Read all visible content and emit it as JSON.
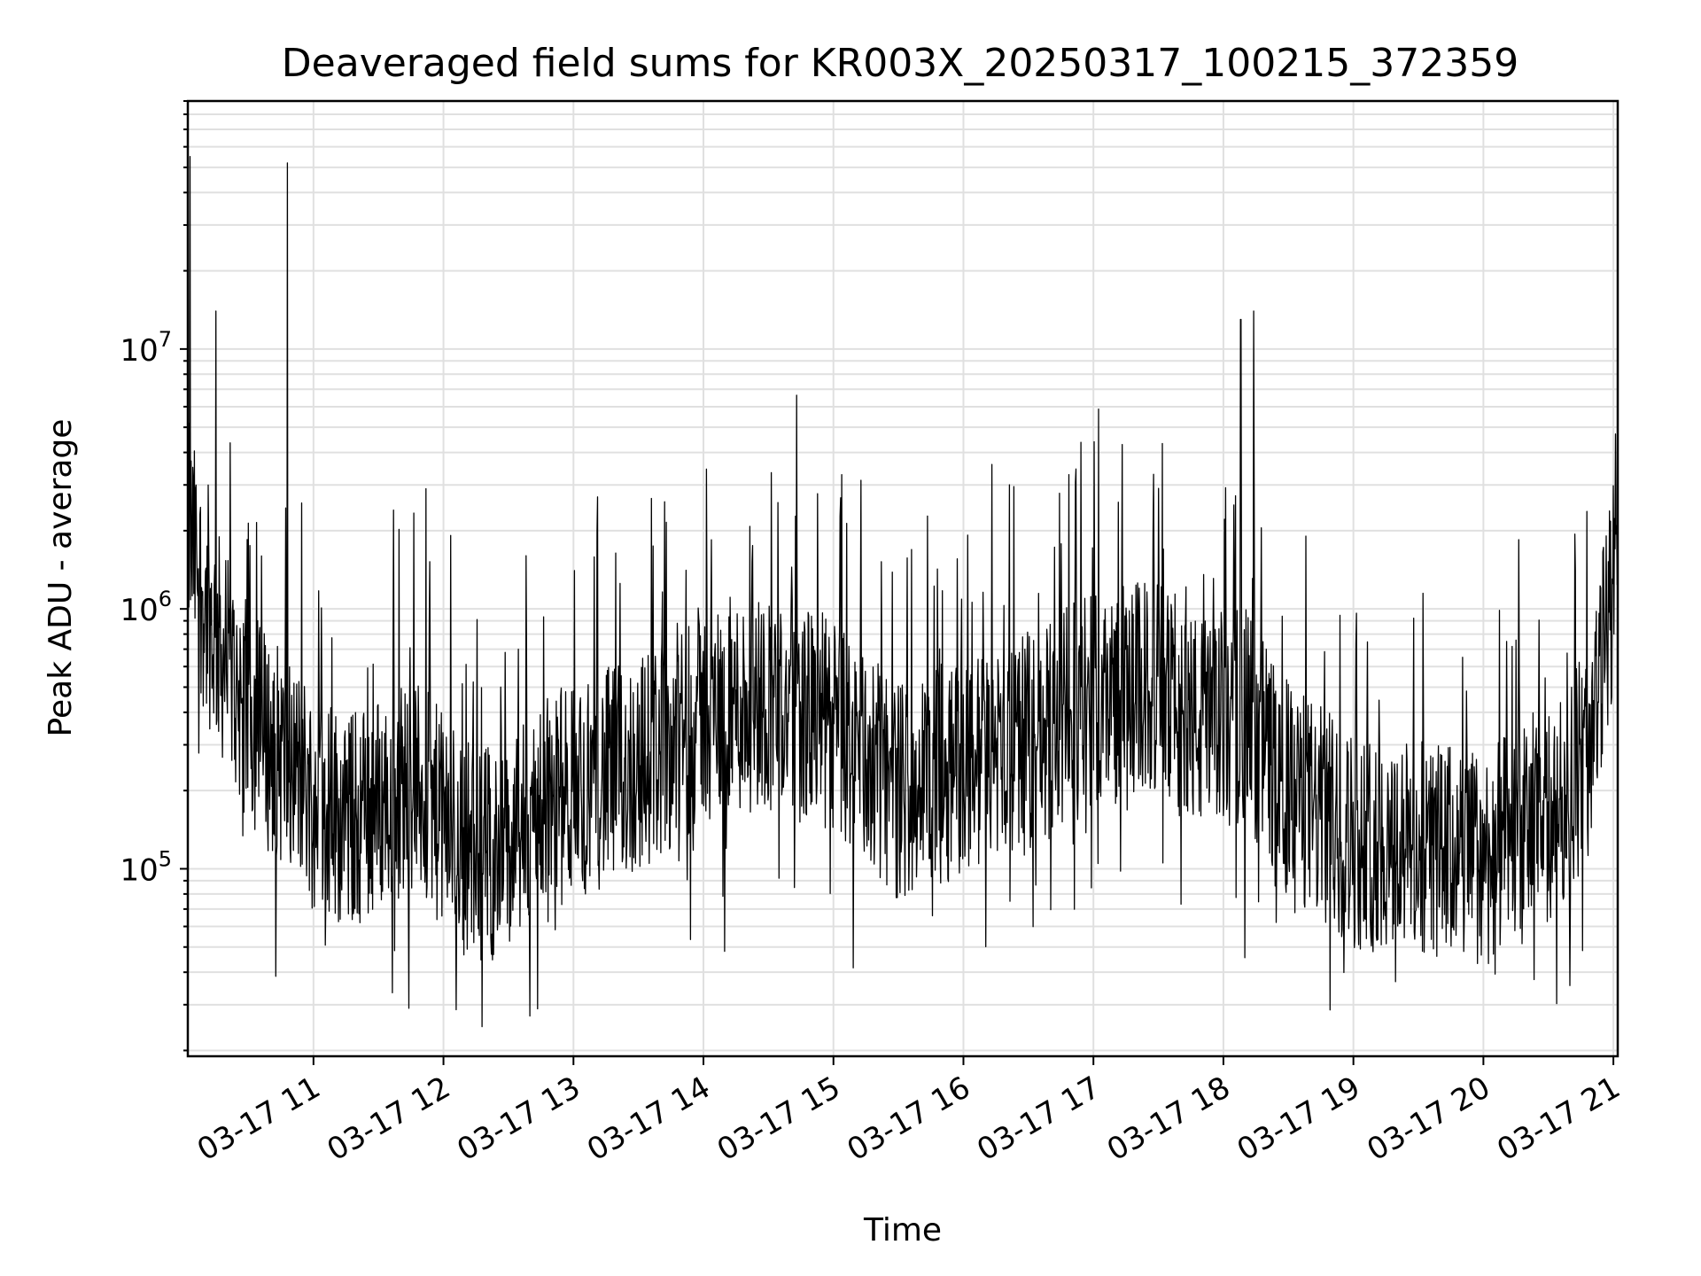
{
  "chart_data": {
    "type": "line",
    "title": "Deaveraged field sums for KR003X_20250317_100215_372359",
    "xlabel": "Time",
    "ylabel": "Peak ADU - average",
    "yscale": "log",
    "xlim": [
      "2025-03-17T10:02",
      "2025-03-17T21:02"
    ],
    "ylim": [
      19000,
      90000000
    ],
    "grid": true,
    "line_color": "#000000",
    "x_ticks": [
      "03-17 11",
      "03-17 12",
      "03-17 13",
      "03-17 14",
      "03-17 15",
      "03-17 16",
      "03-17 17",
      "03-17 18",
      "03-17 19",
      "03-17 20",
      "03-17 21"
    ],
    "y_ticks": [
      {
        "base": "10",
        "exp": "5",
        "value": 100000
      },
      {
        "base": "10",
        "exp": "6",
        "value": 1000000
      },
      {
        "base": "10",
        "exp": "7",
        "value": 10000000
      }
    ],
    "series": [
      {
        "x": [
          "2025-03-17T10:02",
          "2025-03-17T10:06",
          "2025-03-17T10:10",
          "2025-03-17T10:15",
          "2025-03-17T10:20",
          "2025-03-17T10:30",
          "2025-03-17T10:40",
          "2025-03-17T10:50",
          "2025-03-17T11:00",
          "2025-03-17T11:15",
          "2025-03-17T11:30",
          "2025-03-17T11:45",
          "2025-03-17T12:00",
          "2025-03-17T12:15",
          "2025-03-17T12:30",
          "2025-03-17T12:45",
          "2025-03-17T13:00",
          "2025-03-17T13:30",
          "2025-03-17T14:00",
          "2025-03-17T14:30",
          "2025-03-17T15:00",
          "2025-03-17T15:30",
          "2025-03-17T16:00",
          "2025-03-17T16:30",
          "2025-03-17T17:00",
          "2025-03-17T17:30",
          "2025-03-17T17:50",
          "2025-03-17T18:10",
          "2025-03-17T18:30",
          "2025-03-17T19:00",
          "2025-03-17T19:30",
          "2025-03-17T20:00",
          "2025-03-17T20:30",
          "2025-03-17T20:50",
          "2025-03-17T21:02"
        ],
        "y": [
          2000000,
          1500000,
          1000000,
          800000,
          600000,
          400000,
          300000,
          250000,
          200000,
          150000,
          180000,
          220000,
          150000,
          120000,
          110000,
          180000,
          200000,
          250000,
          400000,
          450000,
          350000,
          200000,
          250000,
          300000,
          450000,
          500000,
          350000,
          400000,
          200000,
          130000,
          120000,
          110000,
          150000,
          300000,
          1800000
        ]
      }
    ],
    "spikes": [
      {
        "x": "2025-03-17T10:03",
        "y": 55000000
      },
      {
        "x": "2025-03-17T10:15",
        "y": 14000000
      },
      {
        "x": "2025-03-17T10:48",
        "y": 52000000
      },
      {
        "x": "2025-03-17T11:37",
        "y": 2400000
      },
      {
        "x": "2025-03-17T11:52",
        "y": 2900000
      },
      {
        "x": "2025-03-17T18:08",
        "y": 13000000
      },
      {
        "x": "2025-03-17T18:14",
        "y": 14000000
      }
    ]
  }
}
